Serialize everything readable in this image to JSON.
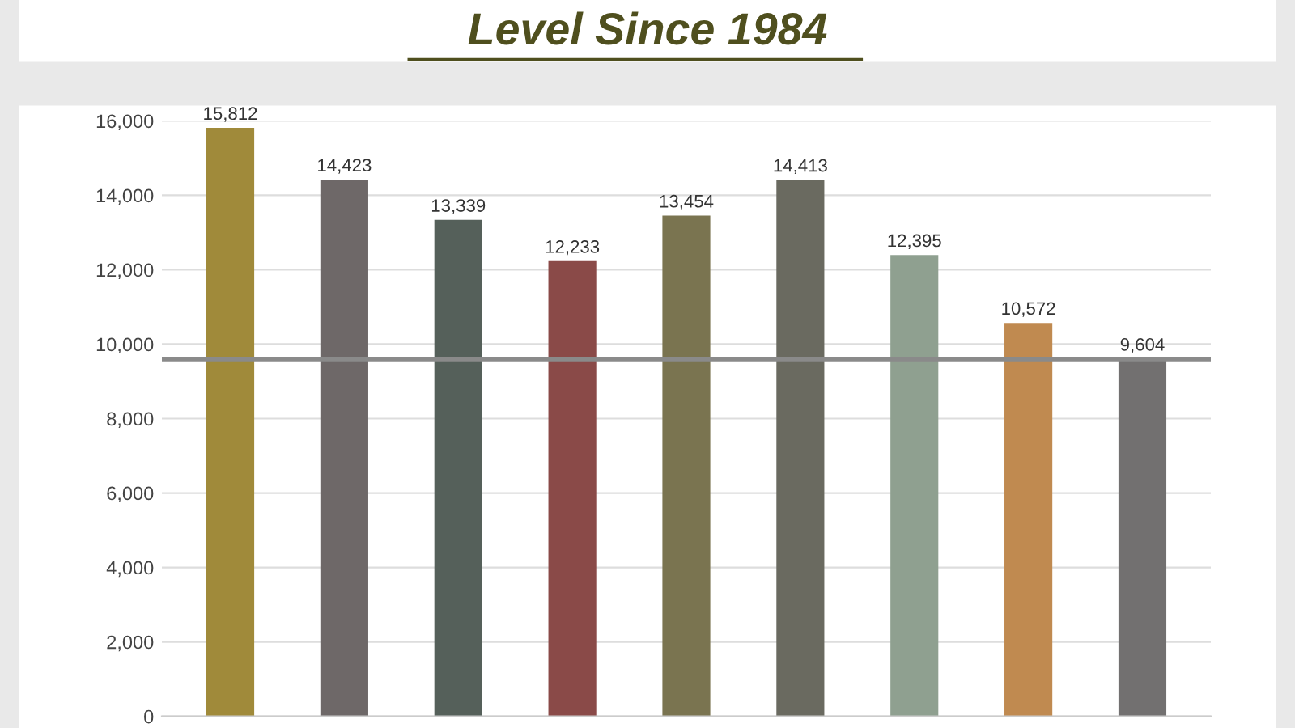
{
  "chart_data": {
    "type": "bar",
    "title": "Level Since 1984",
    "categories": [
      null,
      null,
      null,
      null,
      null,
      null,
      null,
      null,
      null
    ],
    "values": [
      15812,
      14423,
      13339,
      12233,
      13454,
      14413,
      12395,
      10572,
      9604
    ],
    "colors": [
      "#a08a3a",
      "#6e6868",
      "#55605a",
      "#8a4a48",
      "#7a7450",
      "#6a6a60",
      "#8fa090",
      "#c08a50",
      "#727070"
    ],
    "ylim": [
      0,
      16000
    ],
    "yticks": [
      {
        "value": 0,
        "label": "0"
      },
      {
        "value": 2000,
        "label": "2,000"
      },
      {
        "value": 4000,
        "label": "4,000"
      },
      {
        "value": 6000,
        "label": "6,000"
      },
      {
        "value": 8000,
        "label": "8,000"
      },
      {
        "value": 10000,
        "label": "10,000"
      },
      {
        "value": 12000,
        "label": "12,000"
      },
      {
        "value": 14000,
        "label": "14,000"
      },
      {
        "value": 16000,
        "label": "16,000"
      }
    ],
    "value_labels": [
      "15,812",
      "14,423",
      "13,339",
      "12,233",
      "13,454",
      "14,413",
      "12,395",
      "10,572",
      "9,604"
    ],
    "ref_lines": [
      {
        "axis": "y",
        "value": 9600,
        "color": "#8a8a8a"
      }
    ],
    "grid": "y",
    "legend": false
  }
}
